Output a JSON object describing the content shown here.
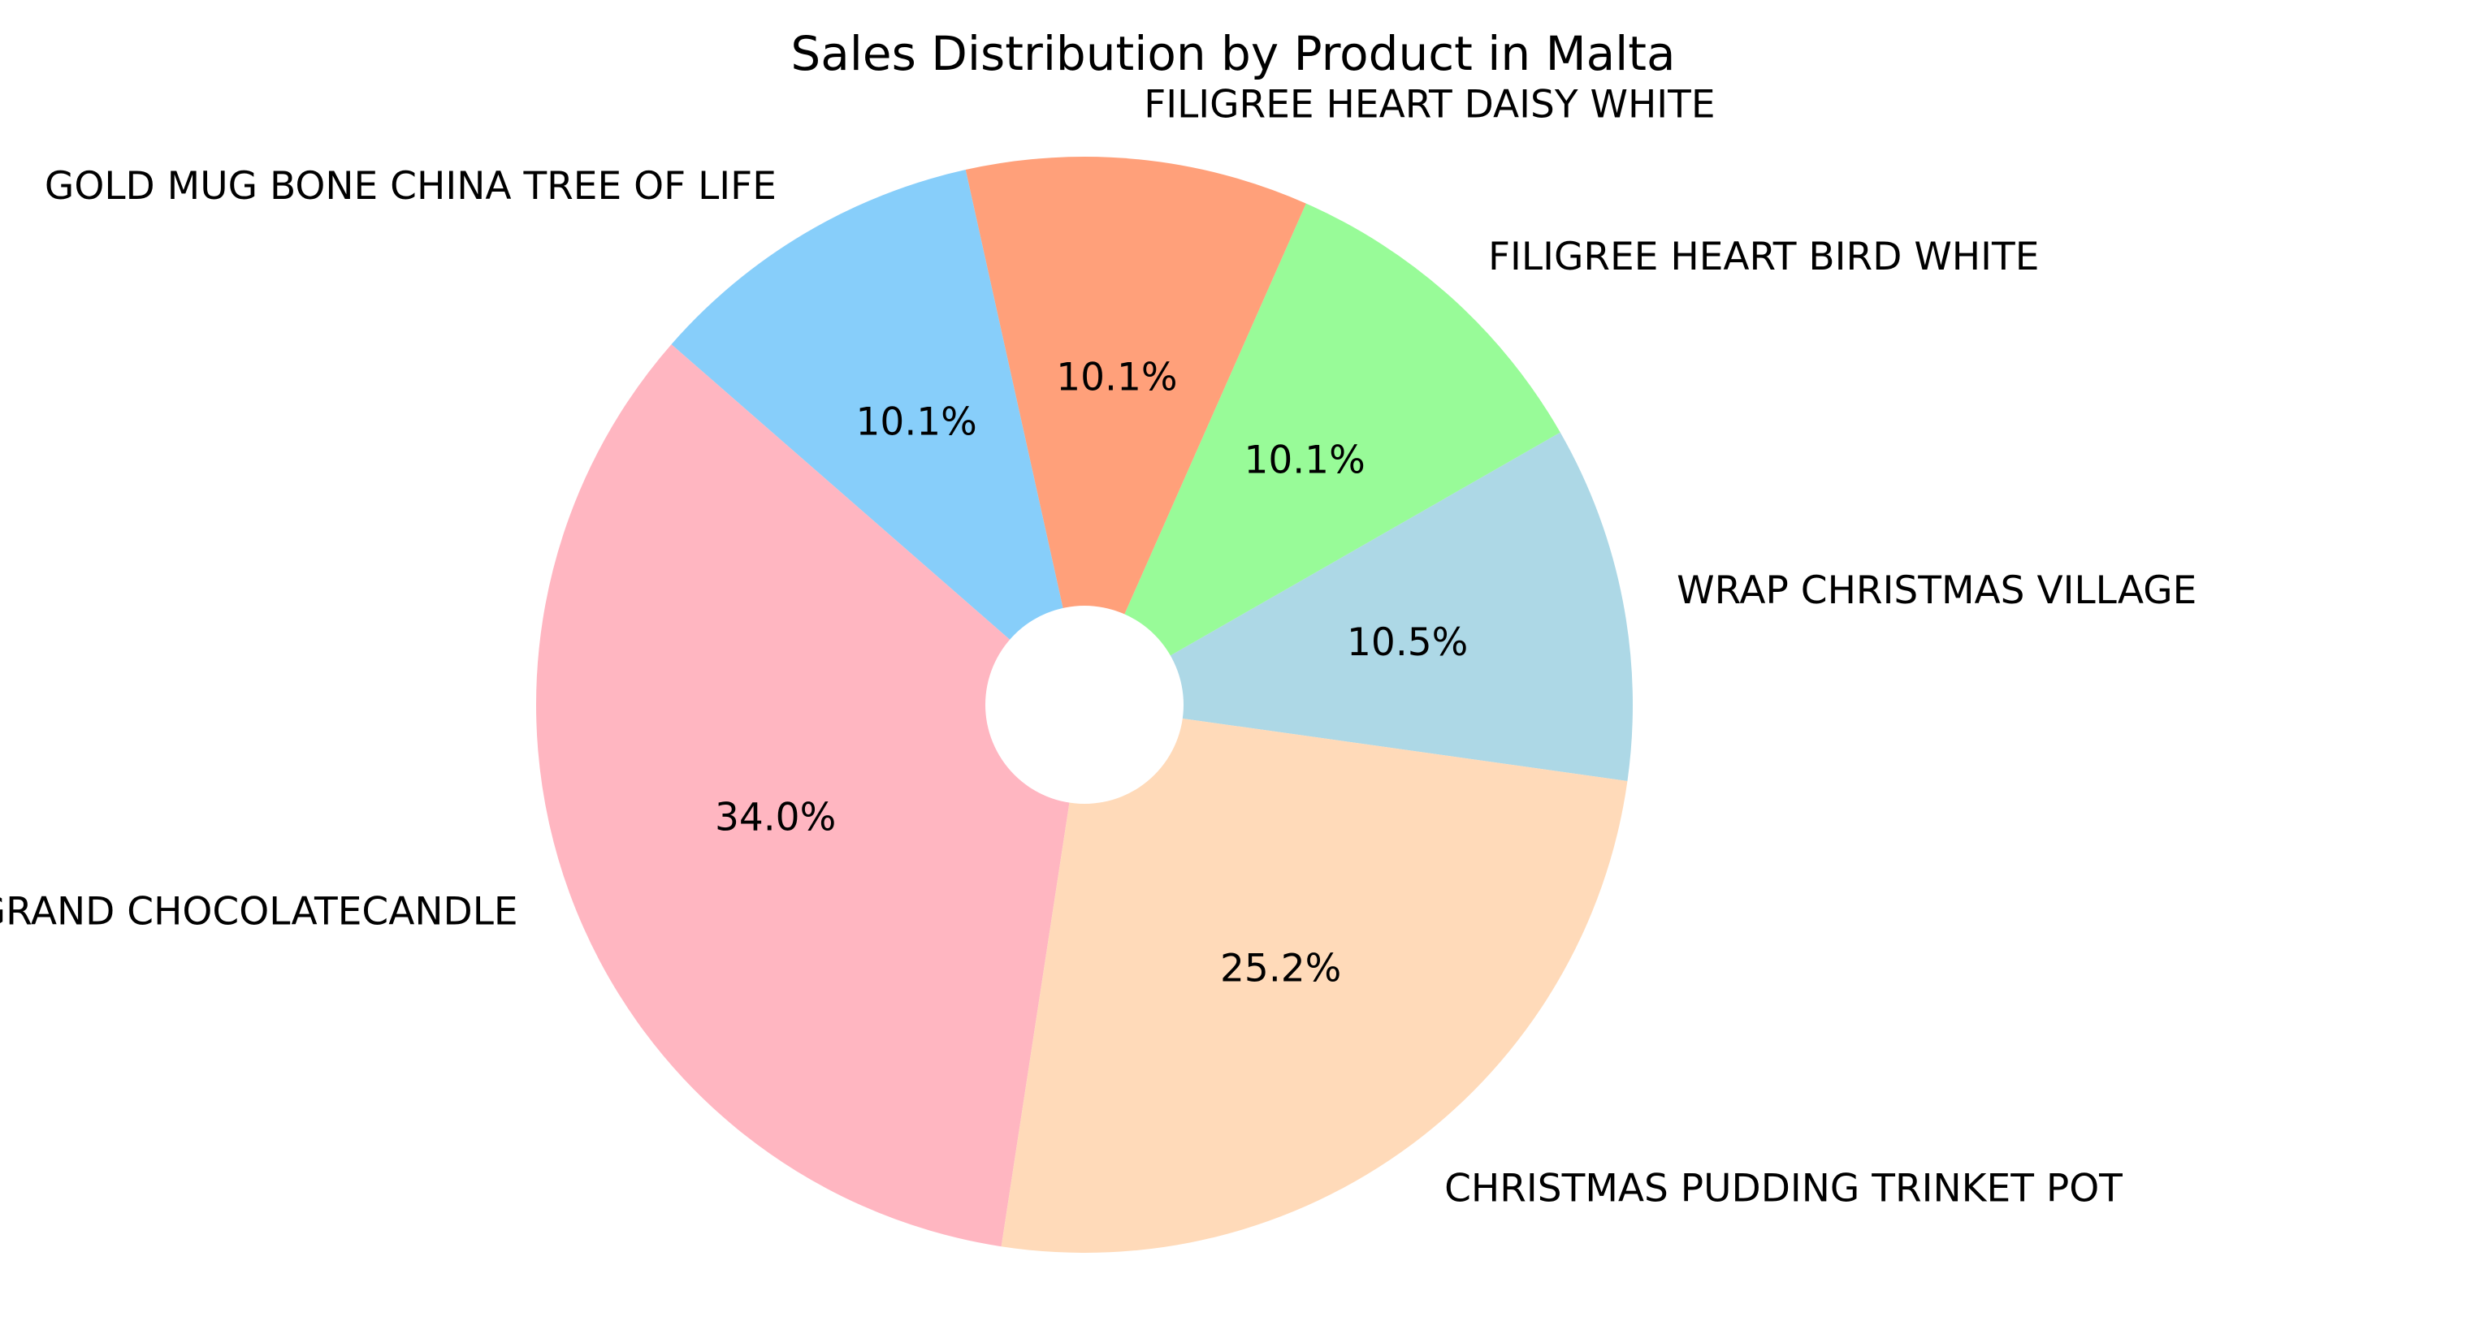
{
  "chart_data": {
    "type": "pie",
    "title": "Sales Distribution by Product in Malta",
    "slices": [
      {
        "label": "WRAP CHRISTMAS VILLAGE",
        "percent": 10.5,
        "percent_label": "10.5%",
        "color": "#add8e6"
      },
      {
        "label": "FILIGREE HEART BIRD WHITE",
        "percent": 10.1,
        "percent_label": "10.1%",
        "color": "#98fb98"
      },
      {
        "label": "FILIGREE HEART DAISY WHITE",
        "percent": 10.1,
        "percent_label": "10.1%",
        "color": "#ffa07a"
      },
      {
        "label": "GOLD MUG BONE CHINA TREE OF LIFE",
        "percent": 10.1,
        "percent_label": "10.1%",
        "color": "#87cefa"
      },
      {
        "label": "GRAND CHOCOLATECANDLE",
        "percent": 34.0,
        "percent_label": "34.0%",
        "color": "#ffb6c1"
      },
      {
        "label": "CHRISTMAS PUDDING TRINKET POT",
        "percent": 25.2,
        "percent_label": "25.2%",
        "color": "#ffdab9"
      }
    ],
    "start_angle_deg": 352,
    "direction": "counterclockwise",
    "donut_hole": true,
    "legend": "none"
  }
}
